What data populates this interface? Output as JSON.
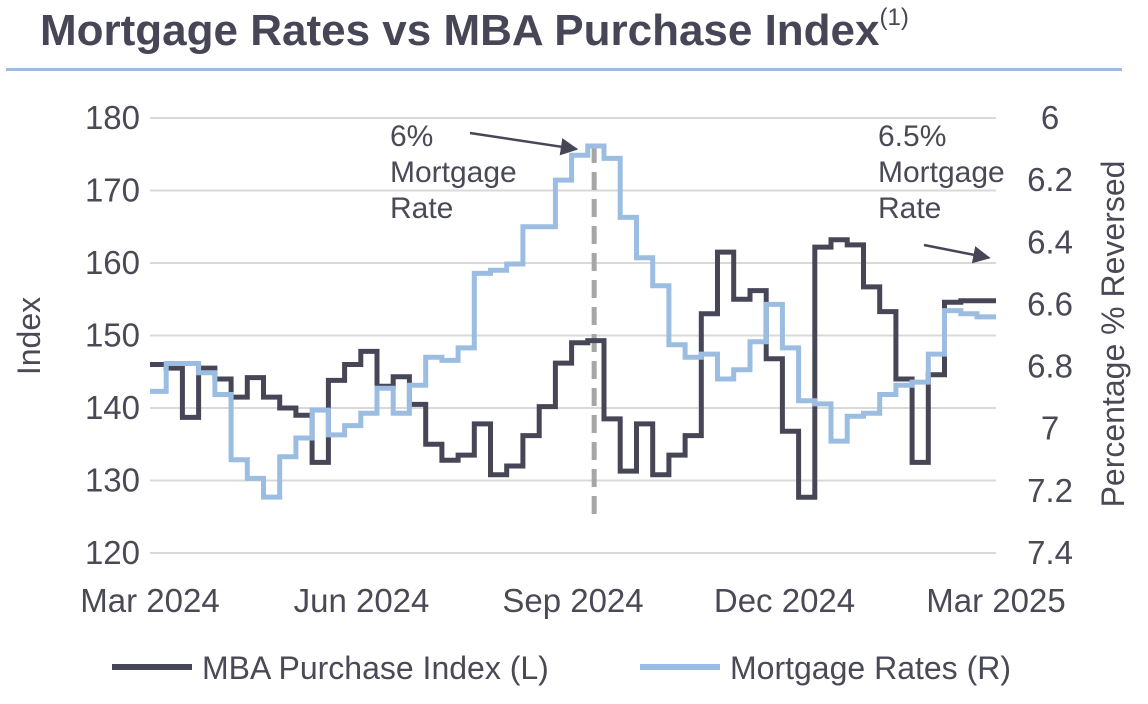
{
  "chart_data": {
    "type": "line",
    "title": "Mortgage Rates vs MBA Purchase Index",
    "title_footnote": "(1)",
    "ylabel_left": "Index",
    "ylabel_right": "Percentage % Reversed",
    "ylim_left": [
      120,
      180
    ],
    "ylim_right": [
      6,
      7.4
    ],
    "right_axis_reversed": true,
    "yticks_left": [
      "180",
      "170",
      "160",
      "150",
      "140",
      "130",
      "120"
    ],
    "yticks_right": [
      "6",
      "6.2",
      "6.4",
      "6.6",
      "6.8",
      "7",
      "7.2",
      "7.4"
    ],
    "xlim": [
      0,
      12
    ],
    "x_unit": "months since Mar 2024",
    "xticks": [
      {
        "label": "Mar 2024",
        "x": 0
      },
      {
        "label": "Jun 2024",
        "x": 3
      },
      {
        "label": "Sep 2024",
        "x": 6
      },
      {
        "label": "Dec 2024",
        "x": 9
      },
      {
        "label": "Mar 2025",
        "x": 12
      }
    ],
    "grid": true,
    "reference_line": {
      "x": 6.3,
      "style": "dashed"
    },
    "annotations": [
      {
        "lines": [
          "6%",
          "Mortgage",
          "Rate"
        ],
        "arrow_to": {
          "x": 6.05,
          "y_right": 6.1
        }
      },
      {
        "lines": [
          "6.5%",
          "Mortgage",
          "Rate"
        ],
        "arrow_to": {
          "x": 11.9,
          "y_right": 6.45
        }
      }
    ],
    "legend": {
      "position": "bottom",
      "entries": [
        "MBA Purchase Index (L)",
        "Mortgage Rates (R)"
      ]
    },
    "series": [
      {
        "name": "MBA Purchase Index (L)",
        "axis": "left",
        "color": "#474657",
        "step": true,
        "x": [
          0,
          0.23,
          0.46,
          0.69,
          0.92,
          1.15,
          1.38,
          1.61,
          1.84,
          2.07,
          2.3,
          2.53,
          2.76,
          2.99,
          3.22,
          3.45,
          3.68,
          3.91,
          4.14,
          4.37,
          4.6,
          4.83,
          5.06,
          5.29,
          5.52,
          5.75,
          5.98,
          6.21,
          6.44,
          6.67,
          6.9,
          7.13,
          7.36,
          7.59,
          7.82,
          8.05,
          8.28,
          8.51,
          8.74,
          8.97,
          9.2,
          9.43,
          9.66,
          9.89,
          10.12,
          10.35,
          10.58,
          10.81,
          11.04,
          11.27,
          11.5,
          11.73,
          12
        ],
        "values": [
          146,
          145.5,
          138.7,
          145.5,
          144,
          141.5,
          144.2,
          141.5,
          140,
          139,
          132.5,
          143.8,
          146,
          147.8,
          143,
          144.3,
          140.5,
          135,
          132.8,
          133.5,
          137.8,
          130.8,
          132,
          136.2,
          140.2,
          146.2,
          149,
          149.3,
          138.5,
          131.3,
          137.8,
          130.8,
          133.5,
          136.2,
          153,
          161.5,
          155,
          156.2,
          146.8,
          136.8,
          127.7,
          162.2,
          163.2,
          162.5,
          156.7,
          153.3,
          144,
          132.5,
          144.6,
          154.6,
          154.8,
          154.8,
          154.8
        ]
      },
      {
        "name": "Mortgage Rates (R)",
        "axis": "right",
        "color": "#9bbde2",
        "step": true,
        "x": [
          0,
          0.23,
          0.46,
          0.69,
          0.92,
          1.15,
          1.38,
          1.61,
          1.84,
          2.07,
          2.3,
          2.53,
          2.76,
          2.99,
          3.22,
          3.45,
          3.68,
          3.91,
          4.14,
          4.37,
          4.6,
          4.83,
          5.06,
          5.29,
          5.52,
          5.75,
          5.98,
          6.21,
          6.44,
          6.67,
          6.9,
          7.13,
          7.36,
          7.59,
          7.82,
          8.05,
          8.28,
          8.51,
          8.74,
          8.97,
          9.2,
          9.43,
          9.66,
          9.89,
          10.12,
          10.35,
          10.58,
          10.81,
          11.04,
          11.27,
          11.5,
          11.73,
          12
        ],
        "values": [
          6.88,
          6.79,
          6.79,
          6.82,
          6.89,
          7.1,
          7.16,
          7.22,
          7.09,
          7.03,
          6.94,
          7.02,
          6.99,
          6.95,
          6.87,
          6.95,
          6.86,
          6.77,
          6.78,
          6.74,
          6.5,
          6.49,
          6.47,
          6.35,
          6.35,
          6.2,
          6.12,
          6.09,
          6.13,
          6.32,
          6.45,
          6.54,
          6.73,
          6.77,
          6.76,
          6.84,
          6.81,
          6.72,
          6.6,
          6.74,
          6.91,
          6.92,
          7.04,
          6.96,
          6.95,
          6.89,
          6.86,
          6.85,
          6.76,
          6.62,
          6.63,
          6.64,
          6.64
        ]
      }
    ]
  }
}
